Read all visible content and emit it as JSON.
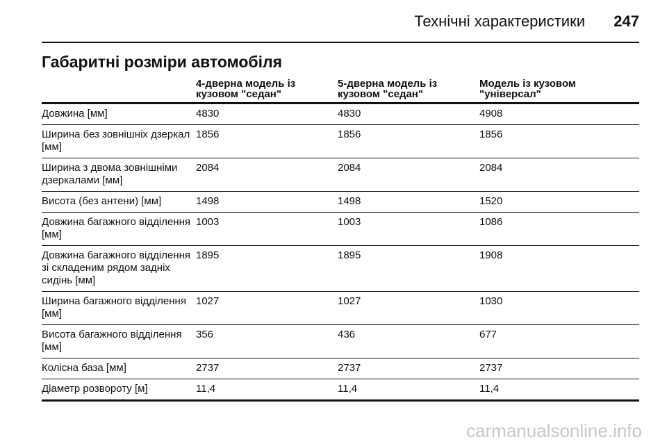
{
  "header": {
    "title": "Технічні характеристики",
    "page_number": "247"
  },
  "section": {
    "title": "Габаритні розміри автомобіля"
  },
  "table": {
    "columns": [
      "",
      "4-дверна модель із кузовом \"седан\"",
      "5-дверна модель із кузовом \"седан\"",
      "Модель із кузовом \"універсал\""
    ],
    "rows": [
      {
        "label": "Довжина [мм]",
        "values": [
          "4830",
          "4830",
          "4908"
        ]
      },
      {
        "label": "Ширина без зовнішніх дзеркал [мм]",
        "values": [
          "1856",
          "1856",
          "1856"
        ]
      },
      {
        "label": "Ширина з двома зовнішніми дзеркалами [мм]",
        "values": [
          "2084",
          "2084",
          "2084"
        ]
      },
      {
        "label": "Висота (без антени) [мм]",
        "values": [
          "1498",
          "1498",
          "1520"
        ]
      },
      {
        "label": "Довжина багажного відділення [мм]",
        "values": [
          "1003",
          "1003",
          "1086"
        ]
      },
      {
        "label": "Довжина багажного відділення зі складеним рядом задніх сидінь [мм]",
        "values": [
          "1895",
          "1895",
          "1908"
        ]
      },
      {
        "label": "Ширина багажного відділення [мм]",
        "values": [
          "1027",
          "1027",
          "1030"
        ]
      },
      {
        "label": "Висота багажного відділення [мм]",
        "values": [
          "356",
          "436",
          "677"
        ]
      },
      {
        "label": "Колісна база [мм]",
        "values": [
          "2737",
          "2737",
          "2737"
        ]
      },
      {
        "label": "Діаметр розвороту [м]",
        "values": [
          "11,4",
          "11,4",
          "11,4"
        ]
      }
    ]
  },
  "watermark": "carmanualsonline.info"
}
